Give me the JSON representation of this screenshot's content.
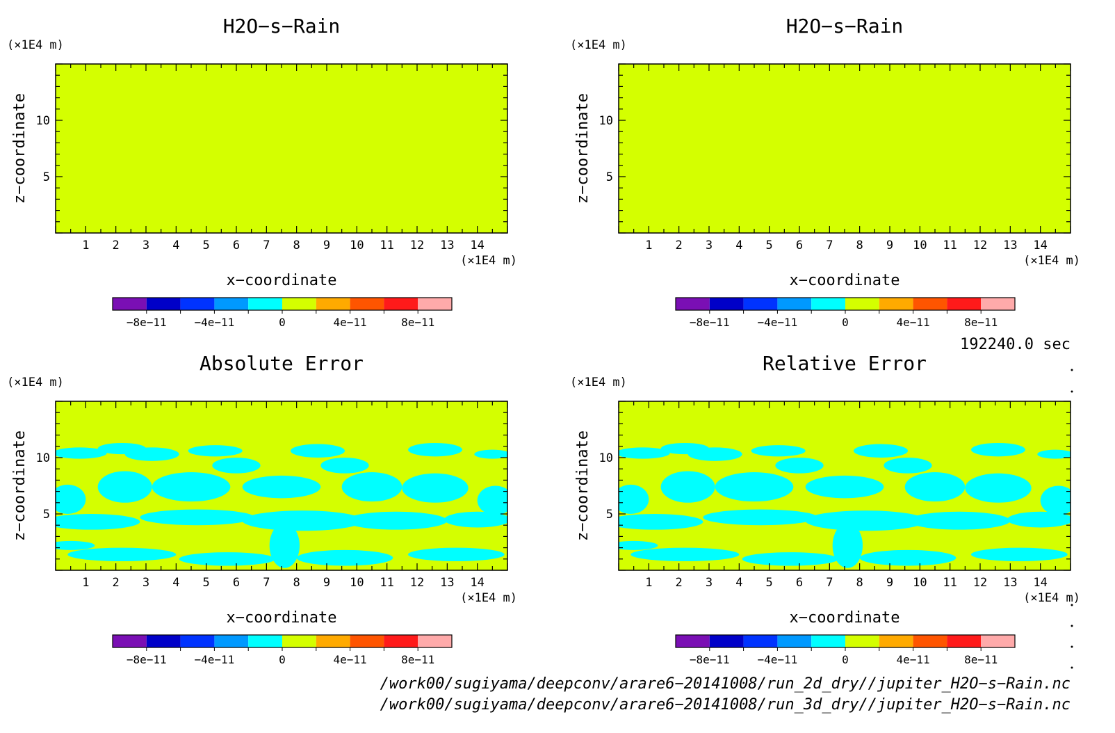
{
  "chart_data": [
    {
      "type": "heatmap",
      "title": "H2O−s−Rain",
      "xlabel": "x−coordinate",
      "ylabel": "z−coordinate",
      "x_unit": "(×1E4 m)",
      "y_unit": "(×1E4 m)",
      "xlim": [
        0,
        15
      ],
      "ylim": [
        0,
        15
      ],
      "x_ticks": [
        1,
        2,
        3,
        4,
        5,
        6,
        7,
        8,
        9,
        10,
        11,
        12,
        13,
        14
      ],
      "y_ticks": [
        5,
        10
      ],
      "field": "uniform",
      "uniform_value": 0
    },
    {
      "type": "heatmap",
      "title": "H2O−s−Rain",
      "xlabel": "x−coordinate",
      "ylabel": "z−coordinate",
      "x_unit": "(×1E4 m)",
      "y_unit": "(×1E4 m)",
      "xlim": [
        0,
        15
      ],
      "ylim": [
        0,
        15
      ],
      "x_ticks": [
        1,
        2,
        3,
        4,
        5,
        6,
        7,
        8,
        9,
        10,
        11,
        12,
        13,
        14
      ],
      "y_ticks": [
        5,
        10
      ],
      "field": "uniform",
      "uniform_value": 0
    },
    {
      "type": "heatmap",
      "title": "Absolute Error",
      "xlabel": "x−coordinate",
      "ylabel": "z−coordinate",
      "x_unit": "(×1E4 m)",
      "y_unit": "(×1E4 m)",
      "xlim": [
        0,
        15
      ],
      "ylim": [
        0,
        15
      ],
      "x_ticks": [
        1,
        2,
        3,
        4,
        5,
        6,
        7,
        8,
        9,
        10,
        11,
        12,
        13,
        14
      ],
      "y_ticks": [
        5,
        10
      ],
      "field": "patches",
      "background_value": 0,
      "patch_value": -1e-11,
      "cyan_patches": [
        {
          "cx": 0.8,
          "cy": 10.4,
          "rx": 0.9,
          "ry": 0.5
        },
        {
          "cx": 2.2,
          "cy": 10.8,
          "rx": 0.8,
          "ry": 0.5
        },
        {
          "cx": 3.2,
          "cy": 10.3,
          "rx": 0.9,
          "ry": 0.6
        },
        {
          "cx": 5.3,
          "cy": 10.6,
          "rx": 0.9,
          "ry": 0.5
        },
        {
          "cx": 8.7,
          "cy": 10.6,
          "rx": 0.9,
          "ry": 0.6
        },
        {
          "cx": 12.6,
          "cy": 10.7,
          "rx": 0.9,
          "ry": 0.6
        },
        {
          "cx": 14.5,
          "cy": 10.3,
          "rx": 0.6,
          "ry": 0.4
        },
        {
          "cx": 0.4,
          "cy": 6.3,
          "rx": 0.6,
          "ry": 1.3
        },
        {
          "cx": 2.3,
          "cy": 7.4,
          "rx": 0.9,
          "ry": 1.4
        },
        {
          "cx": 4.5,
          "cy": 7.4,
          "rx": 1.3,
          "ry": 1.3
        },
        {
          "cx": 6.0,
          "cy": 9.3,
          "rx": 0.8,
          "ry": 0.7
        },
        {
          "cx": 7.5,
          "cy": 7.4,
          "rx": 1.3,
          "ry": 1.0
        },
        {
          "cx": 9.6,
          "cy": 9.3,
          "rx": 0.8,
          "ry": 0.7
        },
        {
          "cx": 10.5,
          "cy": 7.4,
          "rx": 1.0,
          "ry": 1.3
        },
        {
          "cx": 12.6,
          "cy": 7.3,
          "rx": 1.1,
          "ry": 1.3
        },
        {
          "cx": 14.6,
          "cy": 6.2,
          "rx": 0.6,
          "ry": 1.3
        },
        {
          "cx": 1.2,
          "cy": 4.3,
          "rx": 1.6,
          "ry": 0.7
        },
        {
          "cx": 4.7,
          "cy": 4.7,
          "rx": 1.9,
          "ry": 0.7
        },
        {
          "cx": 8.2,
          "cy": 4.4,
          "rx": 2.0,
          "ry": 0.9
        },
        {
          "cx": 11.3,
          "cy": 4.4,
          "rx": 1.7,
          "ry": 0.8
        },
        {
          "cx": 14.0,
          "cy": 4.5,
          "rx": 1.1,
          "ry": 0.7
        },
        {
          "cx": 7.6,
          "cy": 2.2,
          "rx": 0.5,
          "ry": 2.0
        },
        {
          "cx": 2.2,
          "cy": 1.4,
          "rx": 1.8,
          "ry": 0.6
        },
        {
          "cx": 5.7,
          "cy": 1.0,
          "rx": 1.6,
          "ry": 0.6
        },
        {
          "cx": 9.6,
          "cy": 1.1,
          "rx": 1.6,
          "ry": 0.7
        },
        {
          "cx": 13.3,
          "cy": 1.4,
          "rx": 1.6,
          "ry": 0.6
        },
        {
          "cx": 0.5,
          "cy": 2.2,
          "rx": 0.8,
          "ry": 0.4
        }
      ]
    },
    {
      "type": "heatmap",
      "title": "Relative Error",
      "xlabel": "x−coordinate",
      "ylabel": "z−coordinate",
      "x_unit": "(×1E4 m)",
      "y_unit": "(×1E4 m)",
      "xlim": [
        0,
        15
      ],
      "ylim": [
        0,
        15
      ],
      "x_ticks": [
        1,
        2,
        3,
        4,
        5,
        6,
        7,
        8,
        9,
        10,
        11,
        12,
        13,
        14
      ],
      "y_ticks": [
        5,
        10
      ],
      "field": "patches",
      "background_value": 0,
      "patch_value": -1e-11,
      "cyan_patches": "same_as_absolute_error"
    }
  ],
  "colorbar": {
    "levels": [
      -1e-10,
      -8e-11,
      -6e-11,
      -4e-11,
      -2e-11,
      0,
      2e-11,
      4e-11,
      6e-11,
      8e-11,
      1e-10
    ],
    "colors": [
      "#7a0fb4",
      "#0000c8",
      "#0033ff",
      "#0099ff",
      "#00ffff",
      "#d4ff00",
      "#ffaa00",
      "#ff5500",
      "#ff1a1a",
      "#ffaaaa"
    ],
    "tick_labels": [
      "−8e−11",
      "−4e−11",
      "0",
      "4e−11",
      "8e−11"
    ]
  },
  "colors": {
    "field_yellow": "#d4ff00",
    "patch_cyan": "#00ffff"
  },
  "time_label": "192240.0 sec",
  "files": [
    "/work00/sugiyama/deepconv/arare6−20141008/run_2d_dry//jupiter_H2O−s−Rain.nc",
    "/work00/sugiyama/deepconv/arare6−20141008/run_3d_dry//jupiter_H2O−s−Rain.nc"
  ]
}
